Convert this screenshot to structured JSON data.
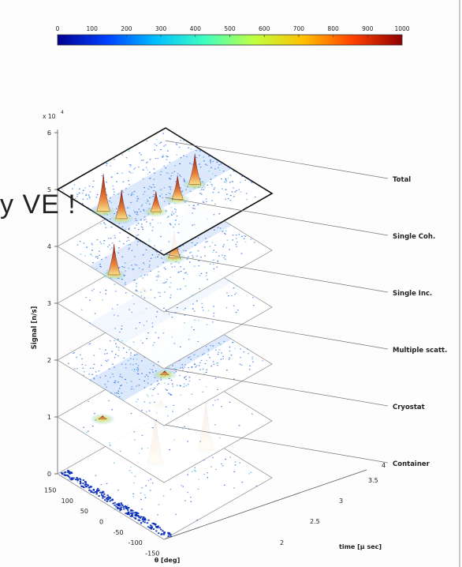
{
  "chart_data": {
    "type": "surface-3d-stacked",
    "colorbar": {
      "ticks": [
        "0",
        "100",
        "200",
        "300",
        "400",
        "500",
        "600",
        "700",
        "800",
        "900",
        "1000"
      ],
      "colors": [
        "#00008f",
        "#0040ff",
        "#00c0ff",
        "#40ffbf",
        "#c0ff40",
        "#ffc000",
        "#ff4000",
        "#8f0000"
      ]
    },
    "z_axis": {
      "label": "Signal [n/s]",
      "multiplier": "x 10",
      "exponent": "4",
      "ticks": [
        "0",
        "1",
        "2",
        "3",
        "4",
        "5",
        "6"
      ]
    },
    "x_axis": {
      "label": "θ [deg]",
      "ticks": [
        "150",
        "100",
        "50",
        "0",
        "-50",
        "-100",
        "-150"
      ]
    },
    "y_axis": {
      "label": "time [μ sec]",
      "ticks": [
        "2",
        "2.5",
        "3",
        "3.5",
        "4"
      ]
    },
    "layers": [
      {
        "name": "Total",
        "offset": 5
      },
      {
        "name": "Single Coh.",
        "offset": 4
      },
      {
        "name": "Single Inc.",
        "offset": 3
      },
      {
        "name": "Multiple scatt.",
        "offset": 2
      },
      {
        "name": "Cryostat",
        "offset": 1
      },
      {
        "name": "Container",
        "offset": 0
      }
    ]
  },
  "overlay_text": "y VE !"
}
